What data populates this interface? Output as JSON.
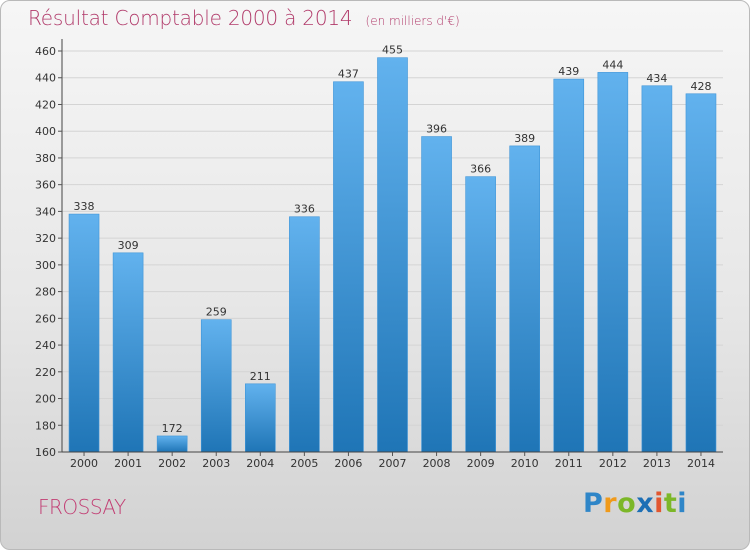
{
  "title": "Résultat Comptable 2000 à 2014",
  "subtitle": "(en milliers d'€)",
  "place": "FROSSAY",
  "logo": {
    "icon": "proxiti-logo",
    "text": "Proxiti"
  },
  "colors": {
    "bar_top": "#62b2ee",
    "bar_bottom": "#1f75b6",
    "title": "#b13a6a",
    "grid": "#d4d4d4"
  },
  "chart_data": {
    "type": "bar",
    "title": "Résultat Comptable 2000 à 2014",
    "subtitle": "(en milliers d'€)",
    "xlabel": "",
    "ylabel": "",
    "categories": [
      "2000",
      "2001",
      "2002",
      "2003",
      "2004",
      "2005",
      "2006",
      "2007",
      "2008",
      "2009",
      "2010",
      "2011",
      "2012",
      "2013",
      "2014"
    ],
    "values": [
      338,
      309,
      172,
      259,
      211,
      336,
      437,
      455,
      396,
      366,
      389,
      439,
      444,
      434,
      428
    ],
    "data_labels": [
      "338",
      "309",
      "172",
      "259",
      "211",
      "336",
      "437",
      "455",
      "396",
      "366",
      "389",
      "439",
      "444",
      "434",
      "428"
    ],
    "ylim": [
      160,
      460
    ],
    "yticks": [
      160,
      180,
      200,
      220,
      240,
      260,
      280,
      300,
      320,
      340,
      360,
      380,
      400,
      420,
      440,
      460
    ],
    "grid": true,
    "legend": "none"
  }
}
